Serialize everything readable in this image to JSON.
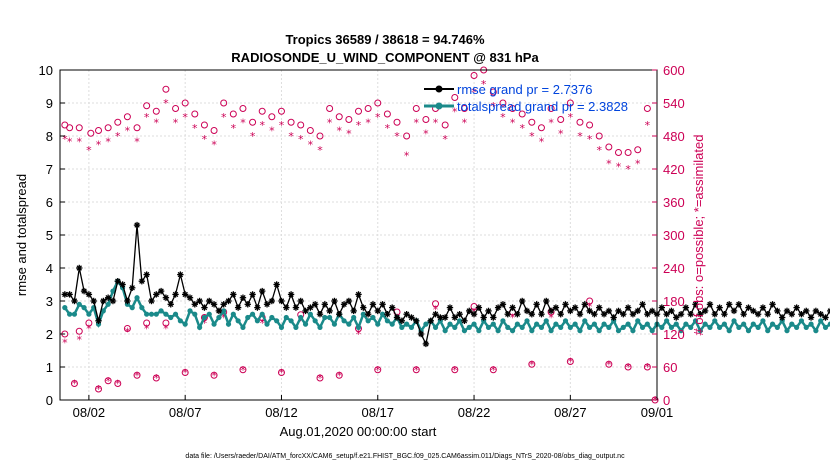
{
  "title_line1": "Tropics 36589 / 38618 = 94.746%",
  "title_line2": "RADIOSONDE_U_WIND_COMPONENT @ 831 hPa",
  "footer": "data file: /Users/raeder/DAI/ATM_forcXX/CAM6_setup/f.e21.FHIST_BGC.f09_025.CAM6assim.011/Diags_NTrS_2020-08/obs_diag_output.nc",
  "colors": {
    "rmse": "#000000",
    "spread": "#1a8a8a",
    "obs": "#cc0055",
    "legend_text": "#0044dd"
  },
  "chart_data": {
    "type": "line",
    "xlabel": "Aug.01,2020 00:00:00 start",
    "ylabel": "rmse and totalspread",
    "y2label": "# of obs: o=possible; *=assimilated",
    "xlim": [
      0.5,
      31.5
    ],
    "ylim": [
      0,
      10
    ],
    "y2lim": [
      0,
      600
    ],
    "xticks": [
      {
        "v": 2,
        "label": "08/02"
      },
      {
        "v": 7,
        "label": "08/07"
      },
      {
        "v": 12,
        "label": "08/12"
      },
      {
        "v": 17,
        "label": "08/17"
      },
      {
        "v": 22,
        "label": "08/22"
      },
      {
        "v": 27,
        "label": "08/27"
      },
      {
        "v": 32,
        "label": "09/01"
      }
    ],
    "yticks": [
      "0",
      "1",
      "2",
      "3",
      "4",
      "5",
      "6",
      "7",
      "8",
      "9",
      "10"
    ],
    "y2ticks": [
      "0",
      "60",
      "120",
      "180",
      "240",
      "300",
      "360",
      "420",
      "480",
      "540",
      "600"
    ],
    "legend": {
      "position": "top-right",
      "entries": [
        "rmse grand pr = 2.7376",
        "totalspread grand pr = 2.3828"
      ]
    },
    "series": [
      {
        "name": "rmse",
        "x_start": 0.75,
        "x_step": 0.25,
        "values": [
          3.2,
          3.2,
          3.0,
          4.0,
          3.3,
          3.2,
          3.0,
          2.4,
          3.0,
          3.1,
          3.0,
          3.6,
          3.5,
          3.0,
          3.4,
          5.3,
          3.6,
          3.8,
          3.0,
          3.2,
          3.3,
          3.1,
          2.9,
          3.2,
          3.8,
          3.2,
          3.1,
          2.9,
          3.0,
          2.8,
          3.0,
          2.9,
          2.7,
          2.9,
          3.0,
          3.2,
          2.8,
          3.1,
          2.9,
          3.2,
          2.8,
          3.3,
          2.9,
          3.0,
          3.5,
          3.0,
          2.8,
          3.2,
          2.8,
          3.0,
          2.7,
          2.8,
          2.9,
          2.6,
          2.9,
          2.7,
          3.0,
          2.6,
          2.9,
          3.0,
          2.7,
          3.2,
          2.8,
          2.6,
          2.9,
          2.7,
          2.9,
          2.6,
          2.8,
          2.5,
          2.4,
          2.6,
          2.5,
          2.4,
          2.0,
          1.7,
          2.4,
          2.6,
          2.5,
          2.5,
          2.8,
          2.5,
          2.6,
          2.4,
          2.7,
          2.6,
          2.8,
          2.5,
          2.7,
          2.5,
          2.8,
          2.9,
          2.6,
          2.8,
          2.6,
          3.0,
          2.7,
          2.6,
          2.9,
          2.6,
          3.0,
          2.7,
          2.8,
          2.6,
          2.9,
          2.7,
          2.8,
          2.6,
          2.9,
          2.7,
          2.6,
          2.8,
          2.6,
          2.7,
          2.5,
          2.7,
          2.6,
          2.8,
          2.6,
          2.7,
          2.9,
          2.6,
          2.7,
          2.6,
          2.8,
          2.6,
          2.7,
          2.5,
          2.6,
          2.8,
          2.6,
          2.9,
          2.6,
          2.7,
          2.9,
          2.6,
          2.8,
          2.6,
          2.9,
          2.7,
          2.9,
          2.6,
          2.8,
          2.7,
          2.6,
          2.8,
          2.6,
          2.9,
          2.7,
          2.5,
          2.7,
          2.6,
          2.8,
          2.6,
          2.7,
          2.5,
          2.7,
          2.6,
          2.5,
          2.7,
          2.6,
          2.7,
          2.4,
          2.6,
          2.8,
          2.4,
          2.6,
          2.7,
          2.6,
          2.8,
          2.5,
          2.6,
          2.5,
          2.6,
          2.4,
          2.7,
          2.5,
          2.6,
          2.3,
          2.5,
          2.4,
          2.6,
          2.3,
          2.4,
          2.2,
          2.5,
          2.6,
          2.3,
          2.5,
          2.4,
          2.6,
          2.3,
          2.5,
          2.4,
          2.4,
          2.3,
          2.5,
          1.8,
          2.4,
          2.6,
          2.7,
          2.4,
          2.5,
          2.3,
          2.2
        ]
      },
      {
        "name": "totalspread",
        "x_start": 0.75,
        "x_step": 0.25,
        "values": [
          2.8,
          2.6,
          2.6,
          2.9,
          2.8,
          2.6,
          2.8,
          2.3,
          2.7,
          2.9,
          3.3,
          3.6,
          3.4,
          2.9,
          2.8,
          3.1,
          2.8,
          2.6,
          2.6,
          2.6,
          2.7,
          2.6,
          2.5,
          2.6,
          2.4,
          2.3,
          2.7,
          2.6,
          2.2,
          2.5,
          2.6,
          2.3,
          2.5,
          2.7,
          2.3,
          2.6,
          2.4,
          2.2,
          2.5,
          2.6,
          2.4,
          2.6,
          2.3,
          2.5,
          2.4,
          2.2,
          2.5,
          2.4,
          2.2,
          2.5,
          2.3,
          2.6,
          2.4,
          2.2,
          2.5,
          2.5,
          2.3,
          2.6,
          2.4,
          2.3,
          2.5,
          2.2,
          2.6,
          2.4,
          2.5,
          2.3,
          2.6,
          2.4,
          2.3,
          2.5,
          2.2,
          2.3,
          2.2,
          2.4,
          2.1,
          2.3,
          2.4,
          2.2,
          2.4,
          2.1,
          2.3,
          2.2,
          2.4,
          2.1,
          2.2,
          2.3,
          2.1,
          2.4,
          2.2,
          2.3,
          2.1,
          2.4,
          2.2,
          2.1,
          2.3,
          2.2,
          2.4,
          2.1,
          2.3,
          2.2,
          2.4,
          2.1,
          2.3,
          2.2,
          2.4,
          2.2,
          2.3,
          2.1,
          2.4,
          2.2,
          2.3,
          2.1,
          2.3,
          2.2,
          2.4,
          2.1,
          2.2,
          2.3,
          2.1,
          2.4,
          2.2,
          2.3,
          2.1,
          2.3,
          2.2,
          2.4,
          2.2,
          2.3,
          2.1,
          2.3,
          2.2,
          2.4,
          2.1,
          2.3,
          2.2,
          2.4,
          2.2,
          2.3,
          2.1,
          2.4,
          2.2,
          2.3,
          2.1,
          2.3,
          2.2,
          2.4,
          2.1,
          2.3,
          2.2,
          2.4,
          2.1,
          2.3,
          2.2,
          2.4,
          2.2,
          2.3,
          2.1,
          2.4,
          2.2,
          2.3,
          2.1,
          2.3,
          2.2,
          2.4,
          2.1,
          2.3,
          2.2,
          2.4,
          2.1,
          2.2,
          2.3,
          2.1,
          2.3,
          2.2,
          2.4,
          2.1,
          2.3,
          2.2,
          2.3,
          2.1,
          2.3,
          2.2,
          2.4,
          2.1,
          2.2,
          2.3,
          2.1,
          2.3,
          2.2,
          2.4,
          2.1,
          2.3,
          2.2,
          2.3,
          2.1,
          2.2,
          2.3,
          2.1,
          2.3,
          2.2,
          2.1
        ]
      },
      {
        "name": "obs possible",
        "points": [
          [
            0.75,
            500
          ],
          [
            0.75,
            120
          ],
          [
            1.0,
            495
          ],
          [
            1.5,
            495
          ],
          [
            1.5,
            125
          ],
          [
            1.25,
            30
          ],
          [
            2.0,
            140
          ],
          [
            2.1,
            485
          ],
          [
            2.5,
            490
          ],
          [
            2.5,
            20
          ],
          [
            3.0,
            495
          ],
          [
            3.0,
            35
          ],
          [
            3.5,
            505
          ],
          [
            3.5,
            30
          ],
          [
            4.0,
            515
          ],
          [
            4.0,
            130
          ],
          [
            4.5,
            495
          ],
          [
            4.5,
            45
          ],
          [
            5.0,
            535
          ],
          [
            5.0,
            140
          ],
          [
            5.5,
            525
          ],
          [
            5.5,
            40
          ],
          [
            6.0,
            565
          ],
          [
            6.0,
            140
          ],
          [
            6.5,
            530
          ],
          [
            7.0,
            540
          ],
          [
            7.0,
            50
          ],
          [
            7.5,
            520
          ],
          [
            8.0,
            500
          ],
          [
            8.0,
            150
          ],
          [
            8.5,
            490
          ],
          [
            8.5,
            45
          ],
          [
            9.0,
            540
          ],
          [
            9.0,
            160
          ],
          [
            9.5,
            520
          ],
          [
            10.0,
            530
          ],
          [
            10.0,
            55
          ],
          [
            10.5,
            505
          ],
          [
            11.0,
            525
          ],
          [
            11.0,
            150
          ],
          [
            11.5,
            515
          ],
          [
            12.0,
            525
          ],
          [
            12.0,
            50
          ],
          [
            12.5,
            505
          ],
          [
            13.0,
            500
          ],
          [
            13.0,
            155
          ],
          [
            13.5,
            490
          ],
          [
            14.0,
            480
          ],
          [
            14.0,
            40
          ],
          [
            14.5,
            530
          ],
          [
            15.0,
            515
          ],
          [
            15.0,
            45
          ],
          [
            15.5,
            510
          ],
          [
            16.0,
            525
          ],
          [
            16.0,
            130
          ],
          [
            16.5,
            530
          ],
          [
            17.0,
            540
          ],
          [
            17.0,
            55
          ],
          [
            17.5,
            520
          ],
          [
            18.0,
            505
          ],
          [
            18.0,
            160
          ],
          [
            18.5,
            480
          ],
          [
            19.0,
            530
          ],
          [
            19.0,
            55
          ],
          [
            19.5,
            510
          ],
          [
            20.0,
            530
          ],
          [
            20.0,
            175
          ],
          [
            20.5,
            500
          ],
          [
            21.0,
            550
          ],
          [
            21.0,
            55
          ],
          [
            21.5,
            530
          ],
          [
            22.0,
            590
          ],
          [
            22.0,
            170
          ],
          [
            22.5,
            600
          ],
          [
            23.0,
            560
          ],
          [
            23.0,
            55
          ],
          [
            23.5,
            540
          ],
          [
            24.0,
            530
          ],
          [
            24.0,
            160
          ],
          [
            24.5,
            520
          ],
          [
            25.0,
            505
          ],
          [
            25.0,
            65
          ],
          [
            25.5,
            495
          ],
          [
            26.0,
            530
          ],
          [
            26.0,
            160
          ],
          [
            26.5,
            510
          ],
          [
            27.0,
            540
          ],
          [
            27.0,
            70
          ],
          [
            27.5,
            505
          ],
          [
            28.0,
            500
          ],
          [
            28.0,
            180
          ],
          [
            28.5,
            480
          ],
          [
            29.0,
            460
          ],
          [
            29.0,
            65
          ],
          [
            29.5,
            450
          ],
          [
            30.0,
            450
          ],
          [
            30.0,
            60
          ],
          [
            30.5,
            455
          ],
          [
            31.0,
            530
          ],
          [
            31.0,
            60
          ],
          [
            31.4,
            0
          ]
        ]
      },
      {
        "name": "obs assimilated",
        "points": [
          [
            0.75,
            475
          ],
          [
            0.75,
            105
          ],
          [
            1.0,
            470
          ],
          [
            1.5,
            470
          ],
          [
            1.5,
            110
          ],
          [
            1.25,
            30
          ],
          [
            2.0,
            130
          ],
          [
            2.0,
            455
          ],
          [
            2.5,
            465
          ],
          [
            2.5,
            20
          ],
          [
            3.0,
            470
          ],
          [
            3.0,
            35
          ],
          [
            3.5,
            480
          ],
          [
            3.5,
            30
          ],
          [
            4.0,
            490
          ],
          [
            4.0,
            125
          ],
          [
            4.5,
            470
          ],
          [
            4.5,
            45
          ],
          [
            5.0,
            515
          ],
          [
            5.0,
            130
          ],
          [
            5.5,
            505
          ],
          [
            5.5,
            40
          ],
          [
            6.0,
            540
          ],
          [
            6.0,
            130
          ],
          [
            6.5,
            505
          ],
          [
            7.0,
            515
          ],
          [
            7.0,
            50
          ],
          [
            7.5,
            495
          ],
          [
            8.0,
            475
          ],
          [
            8.0,
            140
          ],
          [
            8.5,
            465
          ],
          [
            8.5,
            45
          ],
          [
            9.0,
            515
          ],
          [
            9.0,
            150
          ],
          [
            9.5,
            495
          ],
          [
            10.0,
            505
          ],
          [
            10.0,
            55
          ],
          [
            10.5,
            480
          ],
          [
            11.0,
            500
          ],
          [
            11.0,
            140
          ],
          [
            11.5,
            490
          ],
          [
            12.0,
            500
          ],
          [
            12.0,
            50
          ],
          [
            12.5,
            480
          ],
          [
            13.0,
            475
          ],
          [
            13.0,
            145
          ],
          [
            13.5,
            465
          ],
          [
            14.0,
            455
          ],
          [
            14.0,
            40
          ],
          [
            14.5,
            505
          ],
          [
            15.0,
            490
          ],
          [
            15.0,
            45
          ],
          [
            15.5,
            485
          ],
          [
            16.0,
            500
          ],
          [
            16.0,
            120
          ],
          [
            16.5,
            505
          ],
          [
            17.0,
            515
          ],
          [
            17.0,
            55
          ],
          [
            17.5,
            495
          ],
          [
            18.0,
            480
          ],
          [
            18.0,
            150
          ],
          [
            18.5,
            445
          ],
          [
            19.0,
            505
          ],
          [
            19.0,
            55
          ],
          [
            19.5,
            485
          ],
          [
            20.0,
            505
          ],
          [
            20.0,
            165
          ],
          [
            20.5,
            475
          ],
          [
            21.0,
            525
          ],
          [
            21.0,
            55
          ],
          [
            21.5,
            505
          ],
          [
            22.0,
            560
          ],
          [
            22.0,
            160
          ],
          [
            22.5,
            575
          ],
          [
            23.0,
            535
          ],
          [
            23.0,
            55
          ],
          [
            23.5,
            515
          ],
          [
            24.0,
            505
          ],
          [
            24.0,
            150
          ],
          [
            24.5,
            495
          ],
          [
            25.0,
            480
          ],
          [
            25.0,
            65
          ],
          [
            25.5,
            470
          ],
          [
            26.0,
            505
          ],
          [
            26.0,
            150
          ],
          [
            26.5,
            485
          ],
          [
            27.0,
            515
          ],
          [
            27.0,
            70
          ],
          [
            27.5,
            480
          ],
          [
            28.0,
            475
          ],
          [
            28.0,
            170
          ],
          [
            28.5,
            455
          ],
          [
            29.0,
            430
          ],
          [
            29.0,
            65
          ],
          [
            29.5,
            425
          ],
          [
            30.0,
            420
          ],
          [
            30.0,
            60
          ],
          [
            30.5,
            430
          ],
          [
            31.0,
            500
          ],
          [
            31.0,
            60
          ],
          [
            31.4,
            0
          ]
        ]
      }
    ]
  }
}
